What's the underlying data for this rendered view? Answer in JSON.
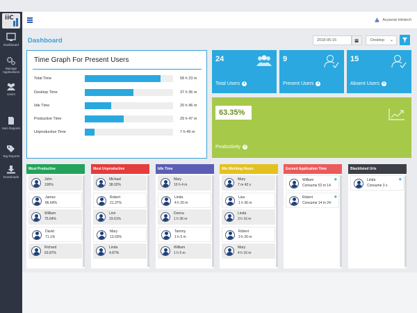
{
  "sidebar": {
    "logo_text": "iiC",
    "items": [
      {
        "label": "Dashboard",
        "icon": "dashboard-icon"
      },
      {
        "label": "Manage Applications",
        "icon": "gears-icon"
      },
      {
        "label": "Users",
        "icon": "users-icon"
      },
      {
        "label": "Item Reports",
        "icon": "document-icon"
      },
      {
        "label": "Tag Reports",
        "icon": "tag-icon"
      },
      {
        "label": "Downloads",
        "icon": "download-icon"
      }
    ]
  },
  "topbar": {
    "company": "Aryavrat Infotech",
    "menu_icon": "hamburger-icon",
    "alert_icon": "warning-icon"
  },
  "header": {
    "title": "Dashboard",
    "date": "2018-05-15",
    "device": "Desktop"
  },
  "time_graph": {
    "title": "Time Graph For Present Users",
    "rows": [
      {
        "label": "Total Time",
        "value": "58 h 23 m",
        "fraction": 0.86
      },
      {
        "label": "Desktop Time",
        "value": "37 h 36 m",
        "fraction": 0.55
      },
      {
        "label": "Idle Time",
        "value": "20 h 46 m",
        "fraction": 0.3
      },
      {
        "label": "Productive Time",
        "value": "29 h 47 m",
        "fraction": 0.44
      },
      {
        "label": "Unproductive Time",
        "value": "7 h 49 m",
        "fraction": 0.11
      }
    ]
  },
  "stats": [
    {
      "value": "24",
      "label": "Total Users",
      "icon": "group-icon"
    },
    {
      "value": "9",
      "label": "Present Users",
      "icon": "user-check-icon"
    },
    {
      "value": "15",
      "label": "Absent Users",
      "icon": "user-check-icon"
    }
  ],
  "productivity": {
    "value": "63.35%",
    "label": "Productivity",
    "icon": "trend-chart-icon"
  },
  "columns": [
    {
      "title": "Most Productive",
      "color": "#23a35a",
      "people": [
        {
          "name": "John",
          "value": "100%"
        },
        {
          "name": "James",
          "value": "86.64%"
        },
        {
          "name": "William",
          "value": "75.64%"
        },
        {
          "name": "David",
          "value": "71.1%"
        },
        {
          "name": "Richard",
          "value": "63.87%"
        }
      ]
    },
    {
      "title": "Most Unproductive",
      "color": "#e53c3c",
      "people": [
        {
          "name": "Michael",
          "value": "38.02%"
        },
        {
          "name": "Robert",
          "value": "21.37%"
        },
        {
          "name": "Linn",
          "value": "19.61%"
        },
        {
          "name": "Mary",
          "value": "13.03%"
        },
        {
          "name": "Linda",
          "value": "4.87%"
        }
      ]
    },
    {
      "title": "Idle Time",
      "color": "#5b5fb4",
      "people": [
        {
          "name": "Mary",
          "value": "10 h 4 m"
        },
        {
          "name": "Linda",
          "value": "4 h 20 m"
        },
        {
          "name": "Donna",
          "value": "1 h 36 m"
        },
        {
          "name": "Tammy",
          "value": "1 h 5 m"
        },
        {
          "name": "William",
          "value": "1 h 5 m"
        }
      ]
    },
    {
      "title": "Min Working Hours",
      "color": "#e3c21f",
      "people": [
        {
          "name": "Mary",
          "value": "7 m 42 s"
        },
        {
          "name": "Lisa",
          "value": "1 h 36 m"
        },
        {
          "name": "Linda",
          "value": "3 h 16 m"
        },
        {
          "name": "Robert",
          "value": "3 h 26 m"
        },
        {
          "name": "Mary",
          "value": "4 h 16 m"
        }
      ]
    },
    {
      "title": "Exceed Application Time",
      "color": "#ec5b5b",
      "people": [
        {
          "name": "William",
          "value": "Consume 52 m 14"
        },
        {
          "name": "Robert",
          "value": "Consume 14 m 24"
        }
      ]
    },
    {
      "title": "Blacklisted Urls",
      "color": "#3c3f45",
      "people": [
        {
          "name": "Linda",
          "value": "Consume 3 s"
        }
      ]
    }
  ]
}
